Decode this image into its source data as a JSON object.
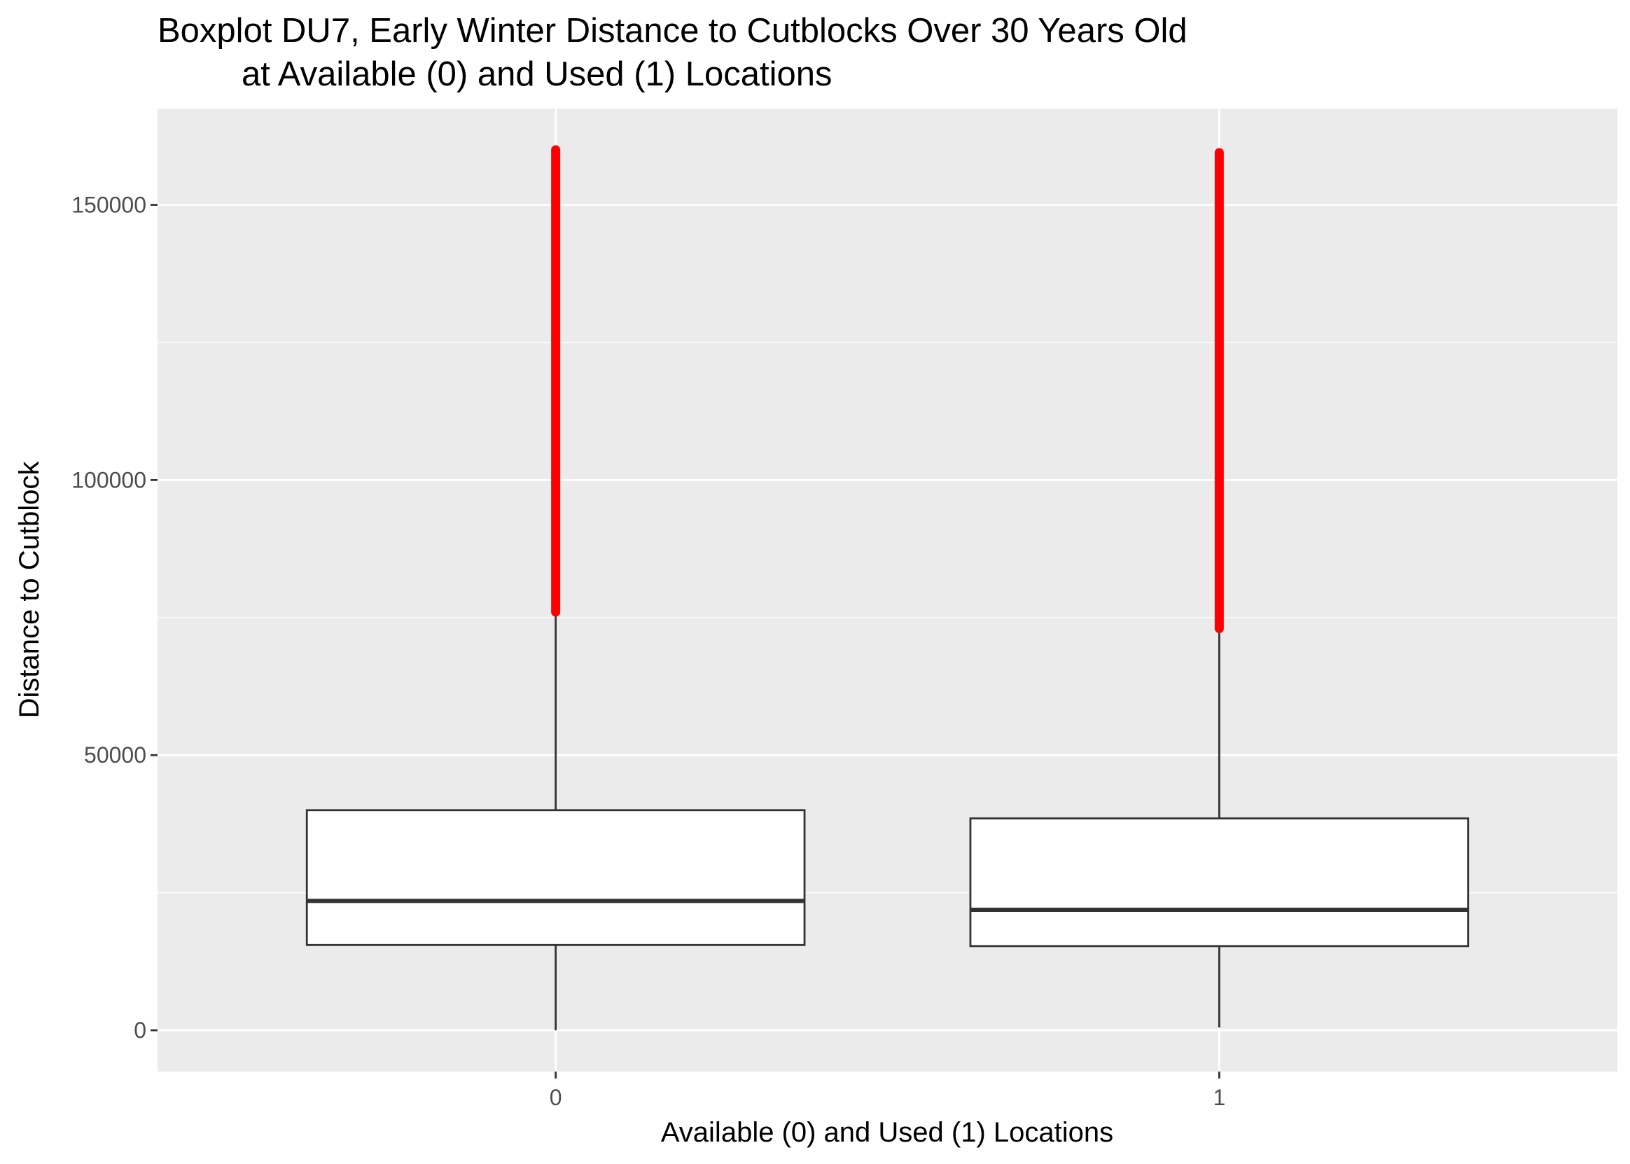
{
  "chart_data": {
    "type": "boxplot",
    "title_lines": [
      "Boxplot DU7, Early Winter Distance to Cutblocks Over 30 Years Old",
      "at Available (0) and Used (1) Locations"
    ],
    "xlabel": "Available (0) and Used (1) Locations",
    "ylabel": "Distance to Cutblock",
    "ylim": [
      -7500,
      167500
    ],
    "y_ticks": [
      0,
      50000,
      100000,
      150000
    ],
    "y_tick_labels": [
      "0",
      "50000",
      "100000",
      "150000"
    ],
    "y_minor_ticks": [
      25000,
      75000,
      125000
    ],
    "categories": [
      "0",
      "1"
    ],
    "boxes": [
      {
        "category": "0",
        "min": 0,
        "q1": 15500,
        "median": 23500,
        "q3": 40000,
        "whisker_high": 76000,
        "outlier_min": 76000,
        "outlier_max": 160000
      },
      {
        "category": "1",
        "min": 500,
        "q1": 15300,
        "median": 21900,
        "q3": 38500,
        "whisker_high": 72500,
        "outlier_min": 73000,
        "outlier_max": 159500
      }
    ],
    "grid": true,
    "colors": {
      "panel_background": "#ebebeb",
      "gridline": "#ffffff",
      "box_fill": "#ffffff",
      "box_outline": "#333333",
      "outlier": "#ff0000",
      "tick_text": "#4d4d4d"
    }
  }
}
